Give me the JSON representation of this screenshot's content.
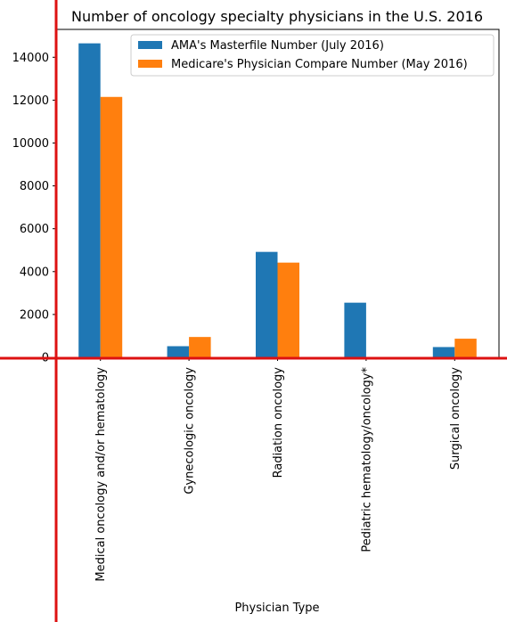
{
  "chart_data": {
    "type": "bar",
    "title": "Number of oncology specialty physicians in the U.S. 2016",
    "xlabel": "Physician Type",
    "ylabel": "",
    "categories": [
      "Medical oncology and/or hematology",
      "Gynecologic oncology",
      "Radiation oncology",
      "Pediatric hematology/oncology*",
      "Surgical oncology"
    ],
    "series": [
      {
        "name": "AMA's Masterfile Number (July 2016)",
        "color": "#1f77b4",
        "values": [
          14650,
          520,
          4920,
          2550,
          480
        ]
      },
      {
        "name": "Medicare's Physician Compare Number (May 2016)",
        "color": "#ff7f0e",
        "values": [
          12150,
          950,
          4420,
          0,
          870
        ]
      }
    ],
    "ylim": [
      0,
      15300
    ],
    "yticks": [
      0,
      2000,
      4000,
      6000,
      8000,
      10000,
      12000,
      14000
    ],
    "ytick_labels": [
      "0",
      "2000",
      "4000",
      "6000",
      "8000",
      "10000",
      "12000",
      "14000"
    ],
    "legend_position": "upper right",
    "grid": false,
    "overlay_lines_color": "#dd1111"
  }
}
